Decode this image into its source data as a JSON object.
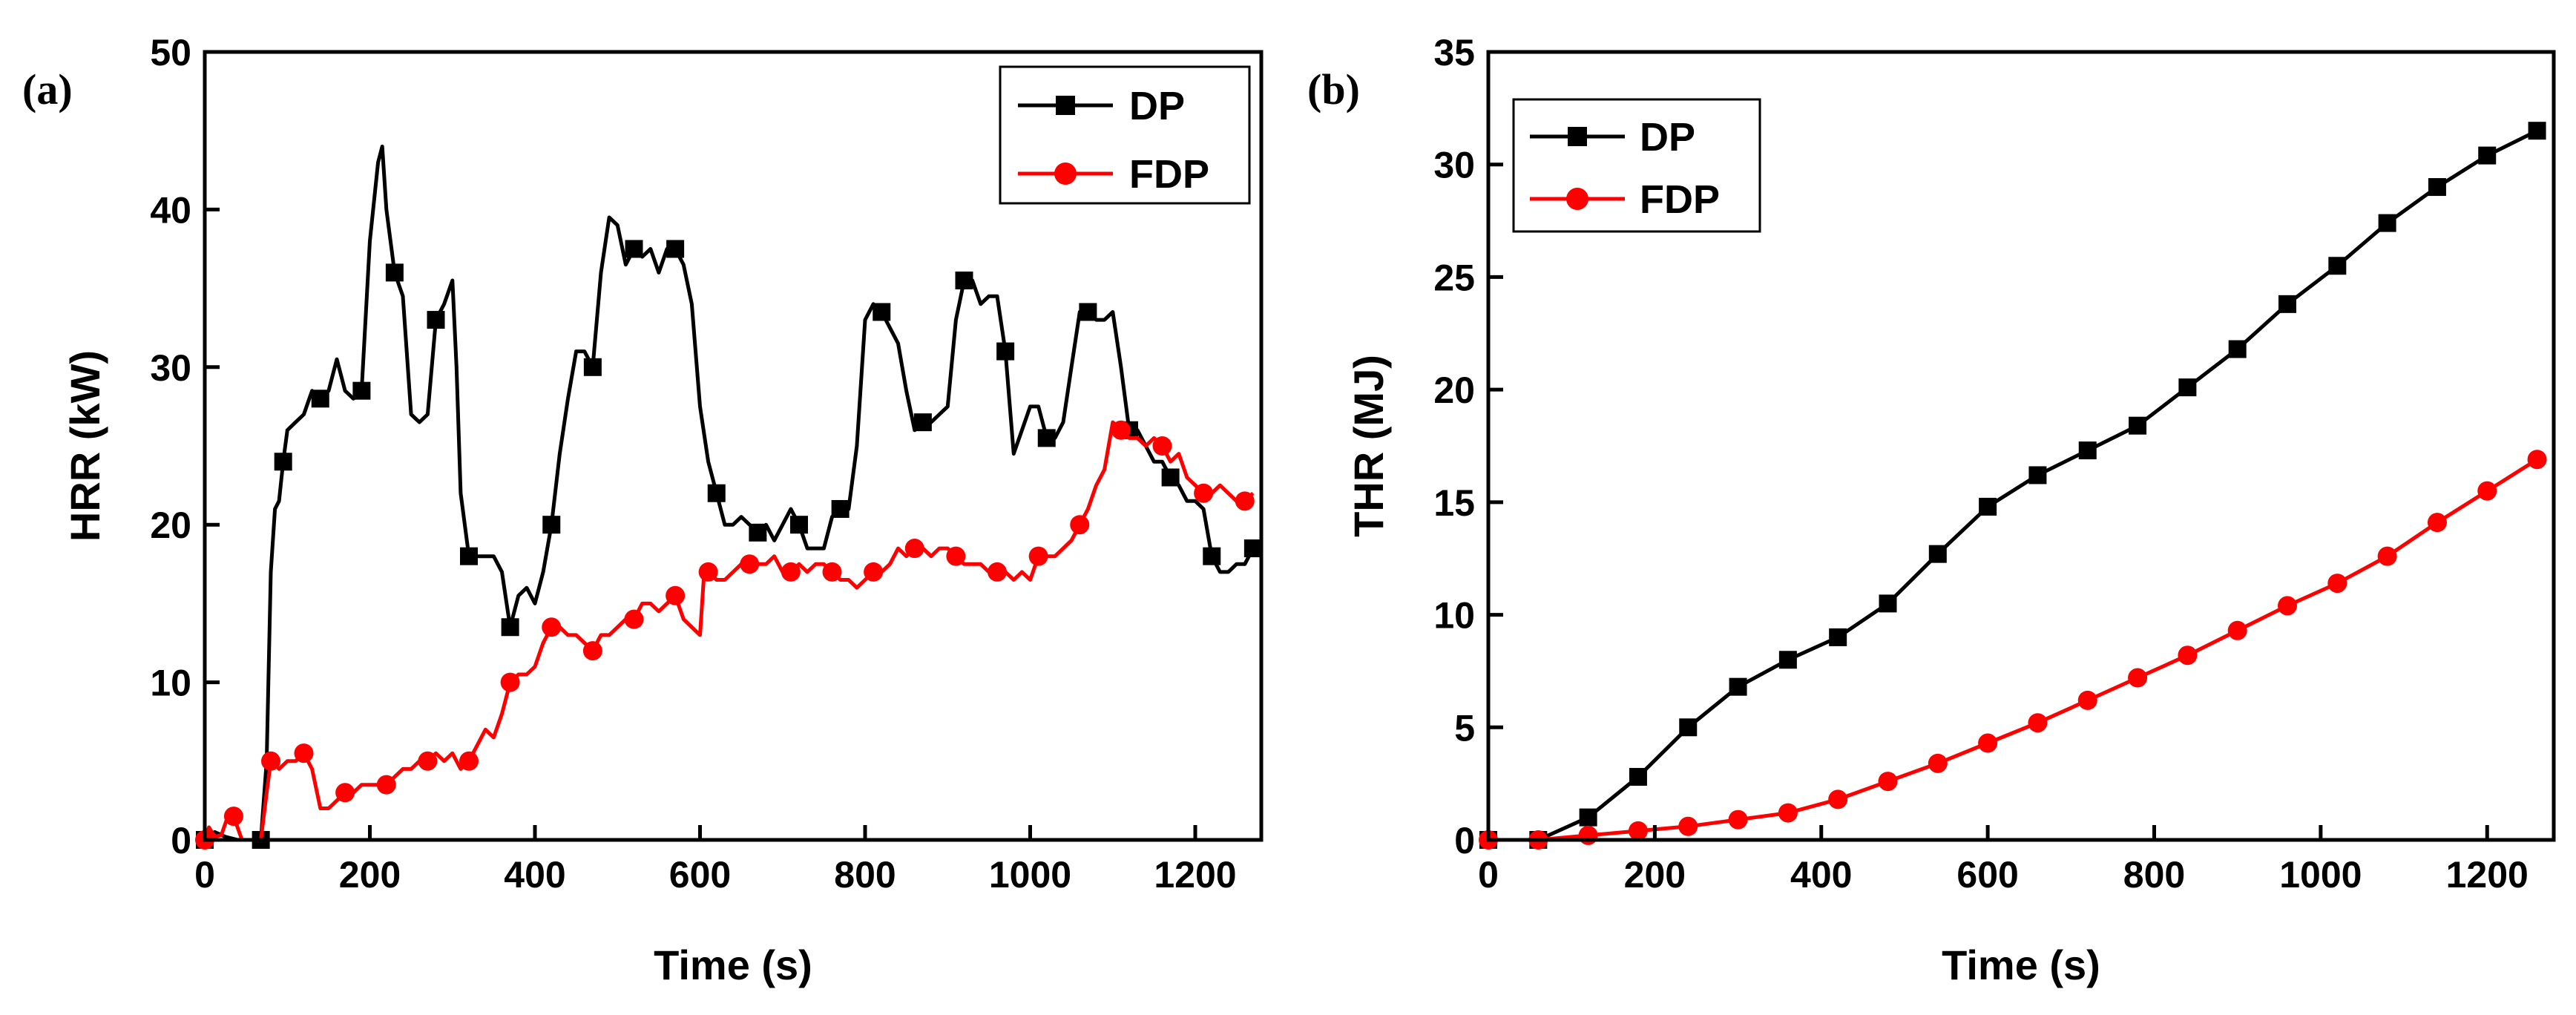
{
  "chart_data": [
    {
      "type": "line",
      "panel_label": "(a)",
      "title": "",
      "xlabel": "Time (s)",
      "ylabel": "HRR (kW)",
      "xlim": [
        0,
        1280
      ],
      "ylim": [
        0,
        50
      ],
      "xticks": [
        0,
        200,
        400,
        600,
        800,
        1000,
        1200
      ],
      "yticks": [
        0,
        10,
        20,
        30,
        40,
        50
      ],
      "grid": false,
      "legend_position": "top-right",
      "series": [
        {
          "name": "DP",
          "color": "#000000",
          "marker": "square",
          "x": [
            0,
            12,
            25,
            40,
            55,
            68,
            75,
            80,
            85,
            90,
            95,
            100,
            110,
            120,
            130,
            140,
            150,
            160,
            170,
            180,
            190,
            200,
            210,
            215,
            220,
            230,
            240,
            250,
            260,
            270,
            280,
            290,
            300,
            305,
            310,
            320,
            330,
            340,
            350,
            360,
            370,
            380,
            390,
            400,
            410,
            420,
            430,
            440,
            450,
            460,
            470,
            480,
            490,
            500,
            510,
            520,
            530,
            540,
            550,
            560,
            570,
            580,
            590,
            600,
            610,
            620,
            630,
            640,
            650,
            660,
            670,
            680,
            690,
            700,
            710,
            720,
            730,
            740,
            750,
            760,
            770,
            780,
            790,
            800,
            810,
            820,
            830,
            840,
            850,
            860,
            870,
            880,
            890,
            900,
            910,
            920,
            930,
            940,
            950,
            960,
            970,
            980,
            990,
            1000,
            1010,
            1020,
            1030,
            1040,
            1050,
            1060,
            1070,
            1080,
            1090,
            1100,
            1110,
            1120,
            1130,
            1140,
            1150,
            1160,
            1170,
            1180,
            1190,
            1200,
            1210,
            1220,
            1230,
            1240,
            1250,
            1260,
            1270
          ],
          "values": [
            0,
            0.5,
            0.2,
            0,
            0,
            0,
            5,
            17,
            21,
            21.5,
            24,
            26,
            26.5,
            27,
            28.5,
            28,
            28.5,
            30.5,
            28.5,
            28,
            28.5,
            38,
            43,
            44,
            40,
            36,
            34.5,
            27,
            26.5,
            27,
            33,
            34,
            35.5,
            30,
            22,
            18,
            18,
            18,
            18,
            17,
            13.5,
            15.5,
            16,
            15,
            17,
            20,
            24.5,
            28,
            31,
            31,
            30,
            36,
            39.5,
            39,
            36.5,
            37.5,
            37,
            37.5,
            36,
            37.5,
            37.5,
            36.5,
            34,
            27.5,
            24,
            22,
            20,
            20,
            20.5,
            20,
            19.5,
            20,
            19,
            20,
            21,
            20,
            18.5,
            18.5,
            18.5,
            20.5,
            21,
            21,
            25,
            33,
            34,
            33.5,
            32.5,
            31.5,
            28.5,
            26,
            26.5,
            26.5,
            27,
            27.5,
            33,
            35.5,
            35.5,
            34,
            34.5,
            34.5,
            31,
            24.5,
            26,
            27.5,
            27.5,
            25.5,
            25.5,
            26.5,
            30,
            33.5,
            33.5,
            33,
            33,
            33.5,
            30,
            26,
            26,
            25,
            24,
            24,
            23,
            22.5,
            21.5,
            21.5,
            21,
            18,
            17,
            17,
            17.5,
            17.5,
            18.5
          ]
        },
        {
          "name": "FDP",
          "color": "#ff0000",
          "marker": "circle",
          "x": [
            0,
            5,
            12,
            20,
            28,
            35,
            45,
            55,
            68,
            75,
            80,
            85,
            90,
            100,
            110,
            120,
            130,
            140,
            150,
            160,
            170,
            180,
            190,
            200,
            210,
            220,
            230,
            240,
            250,
            260,
            270,
            280,
            290,
            300,
            310,
            320,
            330,
            340,
            350,
            360,
            370,
            380,
            390,
            400,
            410,
            420,
            430,
            440,
            450,
            460,
            470,
            480,
            490,
            500,
            510,
            520,
            530,
            540,
            550,
            560,
            570,
            580,
            590,
            600,
            605,
            610,
            620,
            630,
            640,
            650,
            660,
            670,
            680,
            690,
            700,
            710,
            720,
            730,
            740,
            750,
            760,
            770,
            780,
            790,
            800,
            810,
            820,
            830,
            840,
            850,
            860,
            870,
            880,
            890,
            900,
            910,
            920,
            930,
            940,
            950,
            960,
            970,
            980,
            990,
            1000,
            1010,
            1020,
            1030,
            1040,
            1050,
            1060,
            1070,
            1080,
            1090,
            1100,
            1110,
            1120,
            1130,
            1140,
            1150,
            1160,
            1170,
            1180,
            1190,
            1200,
            1210,
            1220,
            1230,
            1240,
            1250,
            1260,
            1270
          ],
          "values": [
            0,
            0.8,
            0.2,
            0.3,
            1.5,
            1.5,
            0,
            0,
            0,
            3,
            5,
            4.8,
            4.5,
            5,
            5,
            5.5,
            4.5,
            2,
            2,
            2.5,
            3,
            3,
            3.5,
            3.5,
            3.5,
            3.5,
            4,
            4.5,
            4.5,
            5,
            5,
            5.5,
            5,
            5.5,
            4.5,
            5,
            6,
            7,
            6.5,
            8,
            10,
            10.5,
            10.5,
            11,
            12.5,
            13.5,
            13.5,
            13,
            13,
            12.5,
            12,
            13,
            13,
            13.5,
            14,
            14,
            15,
            15,
            14.5,
            15,
            15.5,
            14,
            13.5,
            13,
            17,
            17,
            16.5,
            16.5,
            17,
            17.5,
            17.5,
            17.5,
            17.5,
            18,
            17,
            17,
            17.5,
            17,
            17.5,
            17.5,
            17,
            16.5,
            16.5,
            16,
            16.5,
            17,
            17,
            17.5,
            18.5,
            18,
            18.5,
            18.5,
            18,
            18.5,
            18.5,
            18,
            17.5,
            17.5,
            17.5,
            17,
            17,
            17,
            16.5,
            17,
            16.5,
            18,
            18,
            18,
            18.5,
            19,
            20,
            21,
            22.5,
            23.5,
            26.5,
            26,
            25.5,
            25.5,
            25,
            25.5,
            25,
            24,
            24.5,
            23,
            22.5,
            22,
            22,
            22.5,
            22,
            21.5,
            21.5,
            22
          ]
        }
      ]
    },
    {
      "type": "line",
      "panel_label": "(b)",
      "title": "",
      "xlabel": "Time (s)",
      "ylabel": "THR (MJ)",
      "xlim": [
        0,
        1280
      ],
      "ylim": [
        0,
        35
      ],
      "xticks": [
        0,
        200,
        400,
        600,
        800,
        1000,
        1200
      ],
      "yticks": [
        0,
        5,
        10,
        15,
        20,
        25,
        30,
        35
      ],
      "grid": false,
      "legend_position": "top-left",
      "series": [
        {
          "name": "DP",
          "color": "#000000",
          "marker": "square",
          "x": [
            0,
            60,
            120,
            180,
            240,
            300,
            360,
            420,
            480,
            540,
            600,
            660,
            720,
            780,
            840,
            900,
            960,
            1020,
            1080,
            1140,
            1200,
            1260
          ],
          "values": [
            0,
            0,
            1.0,
            2.8,
            5.0,
            6.8,
            8.0,
            9.0,
            10.5,
            12.7,
            14.8,
            16.2,
            17.3,
            18.4,
            20.1,
            21.8,
            23.8,
            25.5,
            27.4,
            29.0,
            30.4,
            31.5
          ]
        },
        {
          "name": "FDP",
          "color": "#ff0000",
          "marker": "circle",
          "x": [
            0,
            60,
            120,
            180,
            240,
            300,
            360,
            420,
            480,
            540,
            600,
            660,
            720,
            780,
            840,
            900,
            960,
            1020,
            1080,
            1140,
            1200,
            1260
          ],
          "values": [
            0,
            0,
            0.2,
            0.4,
            0.6,
            0.9,
            1.2,
            1.8,
            2.6,
            3.4,
            4.3,
            5.2,
            6.2,
            7.2,
            8.2,
            9.3,
            10.4,
            11.4,
            12.6,
            14.1,
            15.5,
            16.9
          ]
        }
      ]
    }
  ]
}
